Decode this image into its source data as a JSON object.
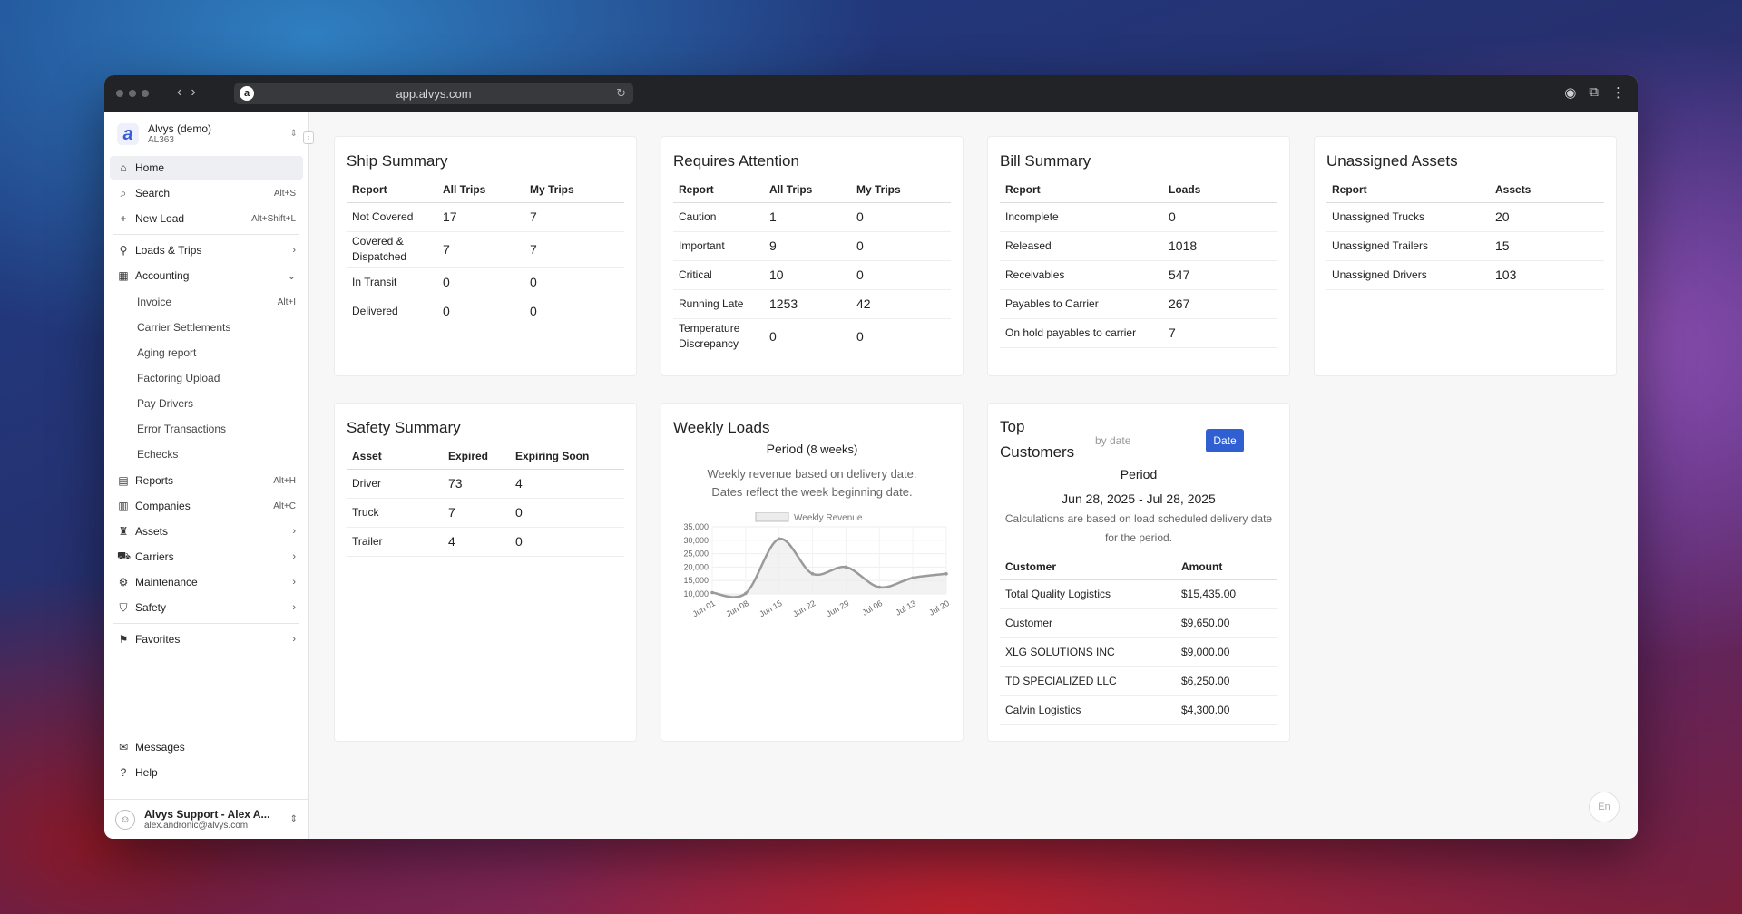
{
  "browser": {
    "url": "app.alvys.com"
  },
  "org": {
    "name": "Alvys (demo)",
    "code": "AL363"
  },
  "nav": {
    "home": "Home",
    "search": "Search",
    "search_sc": "Alt+S",
    "new_load": "New Load",
    "new_load_sc": "Alt+Shift+L",
    "loads": "Loads & Trips",
    "accounting": "Accounting",
    "accounting_sub": [
      {
        "label": "Invoice",
        "sc": "Alt+I"
      },
      {
        "label": "Carrier Settlements",
        "sc": ""
      },
      {
        "label": "Aging report",
        "sc": ""
      },
      {
        "label": "Factoring Upload",
        "sc": ""
      },
      {
        "label": "Pay Drivers",
        "sc": ""
      },
      {
        "label": "Error Transactions",
        "sc": ""
      },
      {
        "label": "Echecks",
        "sc": ""
      }
    ],
    "reports": "Reports",
    "reports_sc": "Alt+H",
    "companies": "Companies",
    "companies_sc": "Alt+C",
    "assets": "Assets",
    "carriers": "Carriers",
    "maintenance": "Maintenance",
    "safety": "Safety",
    "favorites": "Favorites",
    "messages": "Messages",
    "help": "Help"
  },
  "user": {
    "name": "Alvys Support - Alex A...",
    "email": "alex.andronic@alvys.com"
  },
  "ship_summary": {
    "title": "Ship Summary",
    "headers": [
      "Report",
      "All Trips",
      "My Trips"
    ],
    "rows": [
      {
        "report": "Not Covered",
        "all": "17",
        "my": "7"
      },
      {
        "report": "Covered & Dispatched",
        "all": "7",
        "my": "7"
      },
      {
        "report": "In Transit",
        "all": "0",
        "my": "0"
      },
      {
        "report": "Delivered",
        "all": "0",
        "my": "0"
      }
    ]
  },
  "requires_attention": {
    "title": "Requires Attention",
    "headers": [
      "Report",
      "All Trips",
      "My Trips"
    ],
    "rows": [
      {
        "report": "Caution",
        "all": "1",
        "my": "0"
      },
      {
        "report": "Important",
        "all": "9",
        "my": "0"
      },
      {
        "report": "Critical",
        "all": "10",
        "my": "0"
      },
      {
        "report": "Running Late",
        "all": "1253",
        "my": "42"
      },
      {
        "report": "Temperature Discrepancy",
        "all": "0",
        "my": "0"
      }
    ]
  },
  "bill_summary": {
    "title": "Bill Summary",
    "headers": [
      "Report",
      "Loads"
    ],
    "rows": [
      {
        "report": "Incomplete",
        "loads": "0"
      },
      {
        "report": "Released",
        "loads": "1018"
      },
      {
        "report": "Receivables",
        "loads": "547"
      },
      {
        "report": "Payables to Carrier",
        "loads": "267"
      },
      {
        "report": "On hold payables to carrier",
        "loads": "7"
      }
    ]
  },
  "unassigned_assets": {
    "title": "Unassigned Assets",
    "headers": [
      "Report",
      "Assets"
    ],
    "rows": [
      {
        "report": "Unassigned Trucks",
        "assets": "20"
      },
      {
        "report": "Unassigned Trailers",
        "assets": "15"
      },
      {
        "report": "Unassigned Drivers",
        "assets": "103"
      }
    ]
  },
  "safety_summary": {
    "title": "Safety Summary",
    "headers": [
      "Asset",
      "Expired",
      "Expiring Soon"
    ],
    "rows": [
      {
        "asset": "Driver",
        "expired": "73",
        "soon": "4"
      },
      {
        "asset": "Truck",
        "expired": "7",
        "soon": "0"
      },
      {
        "asset": "Trailer",
        "expired": "4",
        "soon": "0"
      }
    ]
  },
  "weekly_loads": {
    "title": "Weekly Loads",
    "period_label": "Period",
    "period_value": "(8 weeks)",
    "desc1": "Weekly revenue based on delivery date.",
    "desc2": "Dates reflect the week beginning date."
  },
  "chart_data": {
    "type": "line",
    "series": [
      {
        "name": "Weekly Revenue",
        "values": [
          10500,
          10200,
          30500,
          17500,
          20000,
          12500,
          16000,
          17500
        ]
      }
    ],
    "x": [
      "Jun 01",
      "Jun 08",
      "Jun 15",
      "Jun 22",
      "Jun 29",
      "Jul 06",
      "Jul 13",
      "Jul 20"
    ],
    "y_ticks": [
      "10,000",
      "15,000",
      "20,000",
      "25,000",
      "30,000",
      "35,000"
    ],
    "ylim": [
      10000,
      35000
    ],
    "legend": "top",
    "colors": {
      "line": "#9a9a9a",
      "fill": "#ececec"
    }
  },
  "top_customers": {
    "title_line1": "Top",
    "title_line2": "Customers",
    "date_placeholder": "by date",
    "date_button": "Date",
    "period_label": "Period",
    "period_range": "Jun 28, 2025 - Jul 28, 2025",
    "note": "Calculations are based on load scheduled delivery date for the period.",
    "headers": [
      "Customer",
      "Amount"
    ],
    "rows": [
      {
        "customer": "Total Quality Logistics",
        "amount": "$15,435.00"
      },
      {
        "customer": "Customer",
        "amount": "$9,650.00"
      },
      {
        "customer": "XLG SOLUTIONS INC",
        "amount": "$9,000.00"
      },
      {
        "customer": "TD SPECIALIZED LLC",
        "amount": "$6,250.00"
      },
      {
        "customer": "Calvin Logistics",
        "amount": "$4,300.00"
      }
    ]
  },
  "lang": "En"
}
